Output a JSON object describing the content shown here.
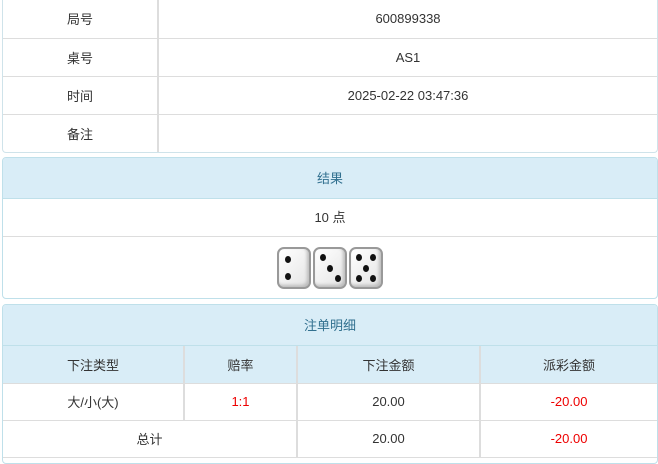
{
  "info": [
    {
      "label": "局号",
      "value": "600899338"
    },
    {
      "label": "桌号",
      "value": "AS1"
    },
    {
      "label": "时间",
      "value": "2025-02-22 03:47:36"
    },
    {
      "label": "备注",
      "value": ""
    }
  ],
  "result": {
    "title": "结果",
    "points": "10 点",
    "dice": [
      2,
      3,
      5
    ]
  },
  "bets": {
    "title": "注单明细",
    "headers": [
      "下注类型",
      "赔率",
      "下注金额",
      "派彩金额"
    ],
    "rows": [
      {
        "type": "大/小(大)",
        "odds": "1:1",
        "amount": "20.00",
        "payout": "-20.00"
      }
    ],
    "total": {
      "label": "总计",
      "amount": "20.00",
      "payout": "-20.00"
    },
    "colors": {
      "negative": "#e00000",
      "header_bg": "#d9edf7"
    }
  }
}
